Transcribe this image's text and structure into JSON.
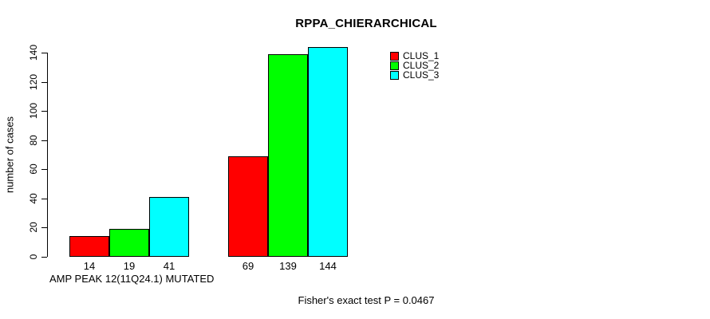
{
  "chart_data": {
    "type": "bar",
    "title": "RPPA_CHIERARCHICAL",
    "ylabel": "number of cases",
    "xlabel": "AMP PEAK 12(11Q24.1) MUTATED",
    "annotation": "Fisher's exact test P = 0.0467",
    "ylim": [
      0,
      140
    ],
    "yticks": [
      0,
      20,
      40,
      60,
      80,
      100,
      120,
      140
    ],
    "categories": [
      "AMP PEAK 12(11Q24.1) MUTATED",
      ""
    ],
    "series": [
      {
        "name": "CLUS_1",
        "color": "#ff0000",
        "values": [
          14,
          69
        ]
      },
      {
        "name": "CLUS_2",
        "color": "#00ff00",
        "values": [
          19,
          139
        ]
      },
      {
        "name": "CLUS_3",
        "color": "#00ffff",
        "values": [
          41,
          144
        ]
      }
    ],
    "bar_value_labels": [
      [
        14,
        19,
        41
      ],
      [
        69,
        139,
        144
      ]
    ],
    "legend_position": "top-right",
    "grid": false,
    "background": "#ffffff",
    "text_color": "#000000"
  }
}
